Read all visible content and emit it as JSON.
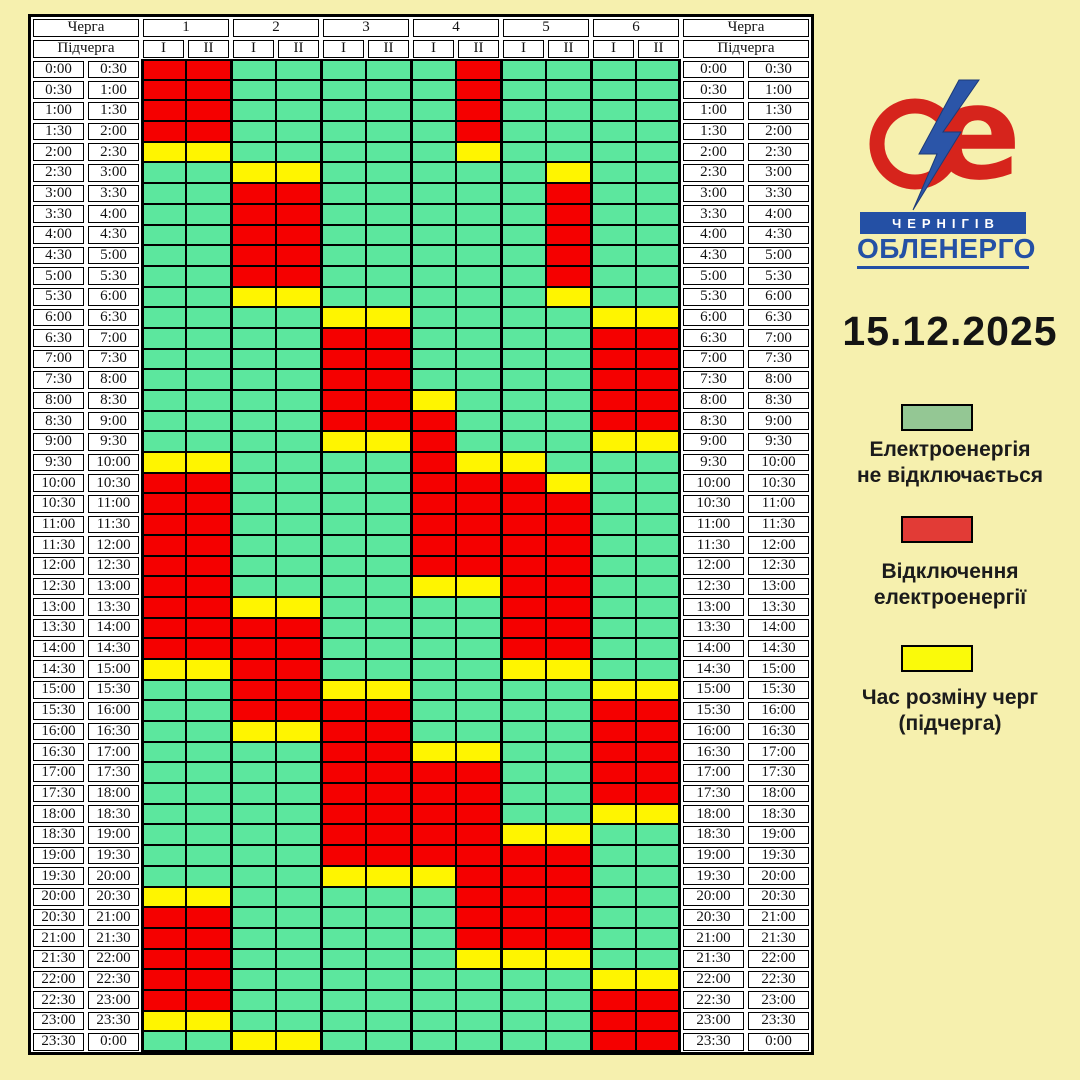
{
  "date_title": "15.12.2025",
  "logo": {
    "city": "ЧЕРНІГІВ",
    "company": "ОБЛЕНЕРГО",
    "red": "#D6241C",
    "blue": "#2450A5",
    "bolt_blue": "#2B55A8"
  },
  "table": {
    "queue_label": "Черга",
    "subqueue_label": "Підчерга",
    "queues": [
      "1",
      "2",
      "3",
      "4",
      "5",
      "6"
    ],
    "subqueues": [
      "І",
      "ІІ"
    ]
  },
  "colors": {
    "background": "#F6F0AE",
    "on": "#5CE79E",
    "off": "#F50000",
    "switch": "#FFF500",
    "grid_line": "#000000"
  },
  "legend": [
    {
      "key": "on",
      "color": "#94C794",
      "line1": "Електроенергія",
      "line2": "не відключається"
    },
    {
      "key": "off",
      "color": "#E23B36",
      "line1": "Відключення",
      "line2": "електроенергії"
    },
    {
      "key": "switch",
      "color": "#FAFA0A",
      "line1": "Час розміну черг",
      "line2": "(підчерга)"
    }
  ],
  "chart_data": {
    "type": "heatmap",
    "date": "15.12.2025",
    "x_groups": [
      "1",
      "2",
      "3",
      "4",
      "5",
      "6"
    ],
    "x_subgroups": [
      "І",
      "ІІ"
    ],
    "value_legend": {
      "G": "Електроенергія не відключається",
      "R": "Відключення електроенергії",
      "Y": "Час розміну черг (підчерга)"
    },
    "rows": [
      {
        "start": "0:00",
        "end": "0:30",
        "cells": "RRGGGGGRGGGG"
      },
      {
        "start": "0:30",
        "end": "1:00",
        "cells": "RRGGGGGRGGGG"
      },
      {
        "start": "1:00",
        "end": "1:30",
        "cells": "RRGGGGGRGGGG"
      },
      {
        "start": "1:30",
        "end": "2:00",
        "cells": "RRGGGGGRGGGG"
      },
      {
        "start": "2:00",
        "end": "2:30",
        "cells": "YYGGGGGYGGGG"
      },
      {
        "start": "2:30",
        "end": "3:00",
        "cells": "GGYYGGGGGYGG"
      },
      {
        "start": "3:00",
        "end": "3:30",
        "cells": "GGRRGGGGGRGG"
      },
      {
        "start": "3:30",
        "end": "4:00",
        "cells": "GGRRGGGGGRGG"
      },
      {
        "start": "4:00",
        "end": "4:30",
        "cells": "GGRRGGGGGRGG"
      },
      {
        "start": "4:30",
        "end": "5:00",
        "cells": "GGRRGGGGGRGG"
      },
      {
        "start": "5:00",
        "end": "5:30",
        "cells": "GGRRGGGGGRGG"
      },
      {
        "start": "5:30",
        "end": "6:00",
        "cells": "GGYYGGGGGYGG"
      },
      {
        "start": "6:00",
        "end": "6:30",
        "cells": "GGGGYYGGGGYY"
      },
      {
        "start": "6:30",
        "end": "7:00",
        "cells": "GGGGRRGGGGRR"
      },
      {
        "start": "7:00",
        "end": "7:30",
        "cells": "GGGGRRGGGGRR"
      },
      {
        "start": "7:30",
        "end": "8:00",
        "cells": "GGGGRRGGGGRR"
      },
      {
        "start": "8:00",
        "end": "8:30",
        "cells": "GGGGRRYGGGRR"
      },
      {
        "start": "8:30",
        "end": "9:00",
        "cells": "GGGGRRRGGGRR"
      },
      {
        "start": "9:00",
        "end": "9:30",
        "cells": "GGGGYYRGGGYY"
      },
      {
        "start": "9:30",
        "end": "10:00",
        "cells": "YYGGGGRYYGGG"
      },
      {
        "start": "10:00",
        "end": "10:30",
        "cells": "RRGGGGRRRYGG"
      },
      {
        "start": "10:30",
        "end": "11:00",
        "cells": "RRGGGGRRRRGG"
      },
      {
        "start": "11:00",
        "end": "11:30",
        "cells": "RRGGGGRRRRGG"
      },
      {
        "start": "11:30",
        "end": "12:00",
        "cells": "RRGGGGRRRRGG"
      },
      {
        "start": "12:00",
        "end": "12:30",
        "cells": "RRGGGGRRRRGG"
      },
      {
        "start": "12:30",
        "end": "13:00",
        "cells": "RRGGGGYYRRGG"
      },
      {
        "start": "13:00",
        "end": "13:30",
        "cells": "RRYYGGGGRRGG"
      },
      {
        "start": "13:30",
        "end": "14:00",
        "cells": "RRRRGGGGRRGG"
      },
      {
        "start": "14:00",
        "end": "14:30",
        "cells": "RRRRGGGGRRGG"
      },
      {
        "start": "14:30",
        "end": "15:00",
        "cells": "YYRRGGGGYYGG"
      },
      {
        "start": "15:00",
        "end": "15:30",
        "cells": "GGRRYYGGGGYY"
      },
      {
        "start": "15:30",
        "end": "16:00",
        "cells": "GGRRRRGGGGRR"
      },
      {
        "start": "16:00",
        "end": "16:30",
        "cells": "GGYYRRGGGGRR"
      },
      {
        "start": "16:30",
        "end": "17:00",
        "cells": "GGGGRRYYGGRR"
      },
      {
        "start": "17:00",
        "end": "17:30",
        "cells": "GGGGRRRRGGRR"
      },
      {
        "start": "17:30",
        "end": "18:00",
        "cells": "GGGGRRRRGGRR"
      },
      {
        "start": "18:00",
        "end": "18:30",
        "cells": "GGGGRRRRGGYY"
      },
      {
        "start": "18:30",
        "end": "19:00",
        "cells": "GGGGRRRRYYGG"
      },
      {
        "start": "19:00",
        "end": "19:30",
        "cells": "GGGGRRRRRRGG"
      },
      {
        "start": "19:30",
        "end": "20:00",
        "cells": "GGGGYYYRRRGG"
      },
      {
        "start": "20:00",
        "end": "20:30",
        "cells": "YYGGGGGRRRGG"
      },
      {
        "start": "20:30",
        "end": "21:00",
        "cells": "RRGGGGGRRRGG"
      },
      {
        "start": "21:00",
        "end": "21:30",
        "cells": "RRGGGGGRRRGG"
      },
      {
        "start": "21:30",
        "end": "22:00",
        "cells": "RRGGGGGYYYGG"
      },
      {
        "start": "22:00",
        "end": "22:30",
        "cells": "RRGGGGGGGGYY"
      },
      {
        "start": "22:30",
        "end": "23:00",
        "cells": "RRGGGGGGGGRR"
      },
      {
        "start": "23:00",
        "end": "23:30",
        "cells": "YYGGGGGGGGRR"
      },
      {
        "start": "23:30",
        "end": "0:00",
        "cells": "GGYYGGGGGGRR"
      }
    ]
  }
}
